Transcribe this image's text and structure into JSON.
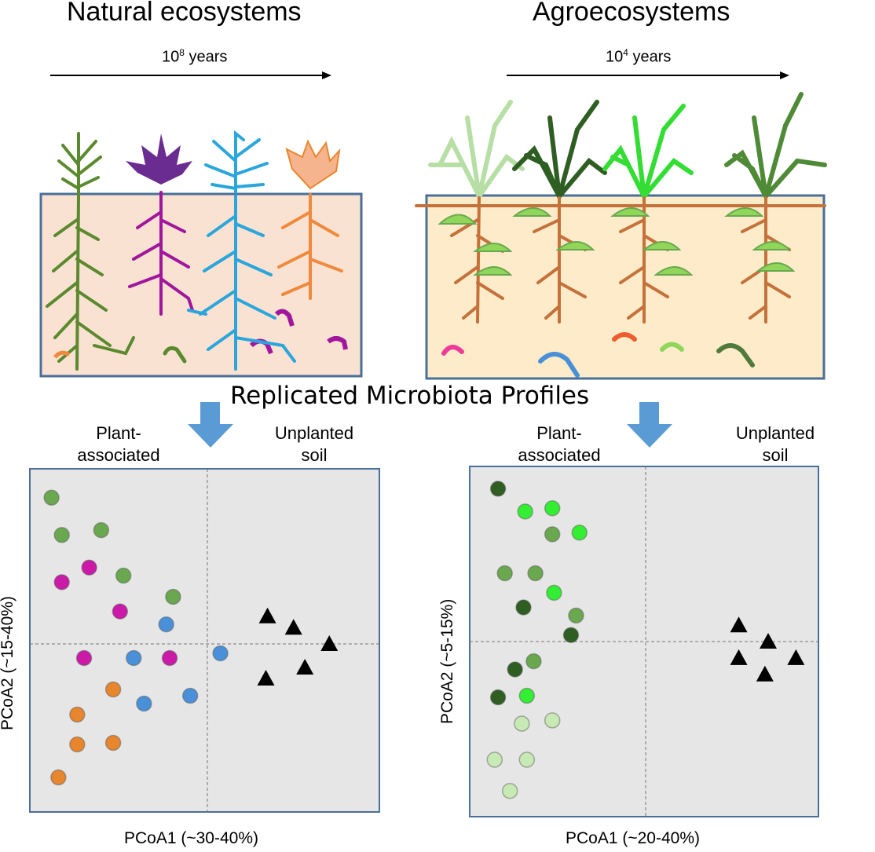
{
  "natural": {
    "title": "Natural ecosystems",
    "years_base": "10",
    "years_exp": "8",
    "years_unit": "years",
    "plant_colors": [
      "#5b8a2e",
      "#a0169d",
      "#2aa6dc",
      "#ef8a3c"
    ]
  },
  "agro": {
    "title": "Agroecosystems",
    "years_base": "10",
    "years_exp": "4",
    "years_unit": "years",
    "plant_colors": [
      "#b7dfa5",
      "#2f5e22",
      "#33dd33",
      "#4f8a36"
    ]
  },
  "center_label": "Replicated Microbiota Profiles",
  "group_labels": {
    "plant_associated": [
      "Plant-",
      "associated"
    ],
    "unplanted_soil": [
      "Unplanted",
      "soil"
    ]
  },
  "chart_data": [
    {
      "type": "scatter",
      "xlabel": "PCoA1 (~30-40%)",
      "ylabel": "PCoA2 (~15-40%)",
      "xlim": [
        -1,
        1
      ],
      "ylim": [
        -1,
        1
      ],
      "grid": "dashed lines at origin",
      "series": [
        {
          "color": "#6aa84f",
          "marker": "circle",
          "x": [
            -0.91,
            -0.85,
            -0.62,
            -0.49,
            -0.2
          ],
          "y": [
            0.9,
            0.67,
            0.7,
            0.42,
            0.29
          ]
        },
        {
          "color": "#cc1aa8",
          "marker": "circle",
          "x": [
            -0.69,
            -0.85,
            -0.51,
            -0.72,
            -0.22
          ],
          "y": [
            0.47,
            0.38,
            0.2,
            -0.09,
            -0.09
          ]
        },
        {
          "color": "#4a90d9",
          "marker": "circle",
          "x": [
            -0.24,
            -0.43,
            0.08,
            -0.37,
            -0.1
          ],
          "y": [
            0.12,
            -0.09,
            -0.06,
            -0.38,
            -0.33
          ]
        },
        {
          "color": "#e8862e",
          "marker": "circle",
          "x": [
            -0.55,
            -0.76,
            -0.76,
            -0.55,
            -0.87
          ],
          "y": [
            -0.29,
            -0.45,
            -0.64,
            -0.63,
            -0.85
          ]
        },
        {
          "color": "#000000",
          "marker": "triangle",
          "x": [
            0.37,
            0.53,
            0.75,
            0.6,
            0.36
          ],
          "y": [
            0.17,
            0.1,
            0.0,
            -0.15,
            -0.22
          ]
        }
      ]
    },
    {
      "type": "scatter",
      "xlabel": "PCoA1 (~20-40%)",
      "ylabel": "PCoA2 (~5-15%)",
      "xlim": [
        -1,
        1
      ],
      "ylim": [
        -1,
        1
      ],
      "grid": "dashed lines at origin",
      "series": [
        {
          "color": "#2f5e22",
          "marker": "circle",
          "x": [
            -0.87,
            -0.72,
            -0.44,
            -0.77,
            -0.87
          ],
          "y": [
            0.94,
            0.21,
            0.04,
            -0.17,
            -0.34
          ]
        },
        {
          "color": "#33ee33",
          "marker": "circle",
          "x": [
            -0.71,
            -0.55,
            -0.39,
            -0.54,
            -0.7
          ],
          "y": [
            0.8,
            0.82,
            0.67,
            0.3,
            -0.33
          ]
        },
        {
          "color": "#6aa84f",
          "marker": "circle",
          "x": [
            -0.55,
            -0.83,
            -0.65,
            -0.41,
            -0.66
          ],
          "y": [
            0.66,
            0.42,
            0.42,
            0.16,
            -0.12
          ]
        },
        {
          "color": "#c7e9b4",
          "marker": "circle",
          "x": [
            -0.73,
            -0.55,
            -0.89,
            -0.7,
            -0.8
          ],
          "y": [
            -0.5,
            -0.48,
            -0.72,
            -0.72,
            -0.91
          ]
        },
        {
          "color": "#000000",
          "marker": "triangle",
          "x": [
            0.57,
            0.75,
            0.92,
            0.57,
            0.73
          ],
          "y": [
            0.1,
            0.0,
            -0.1,
            -0.1,
            -0.2
          ]
        }
      ]
    }
  ]
}
